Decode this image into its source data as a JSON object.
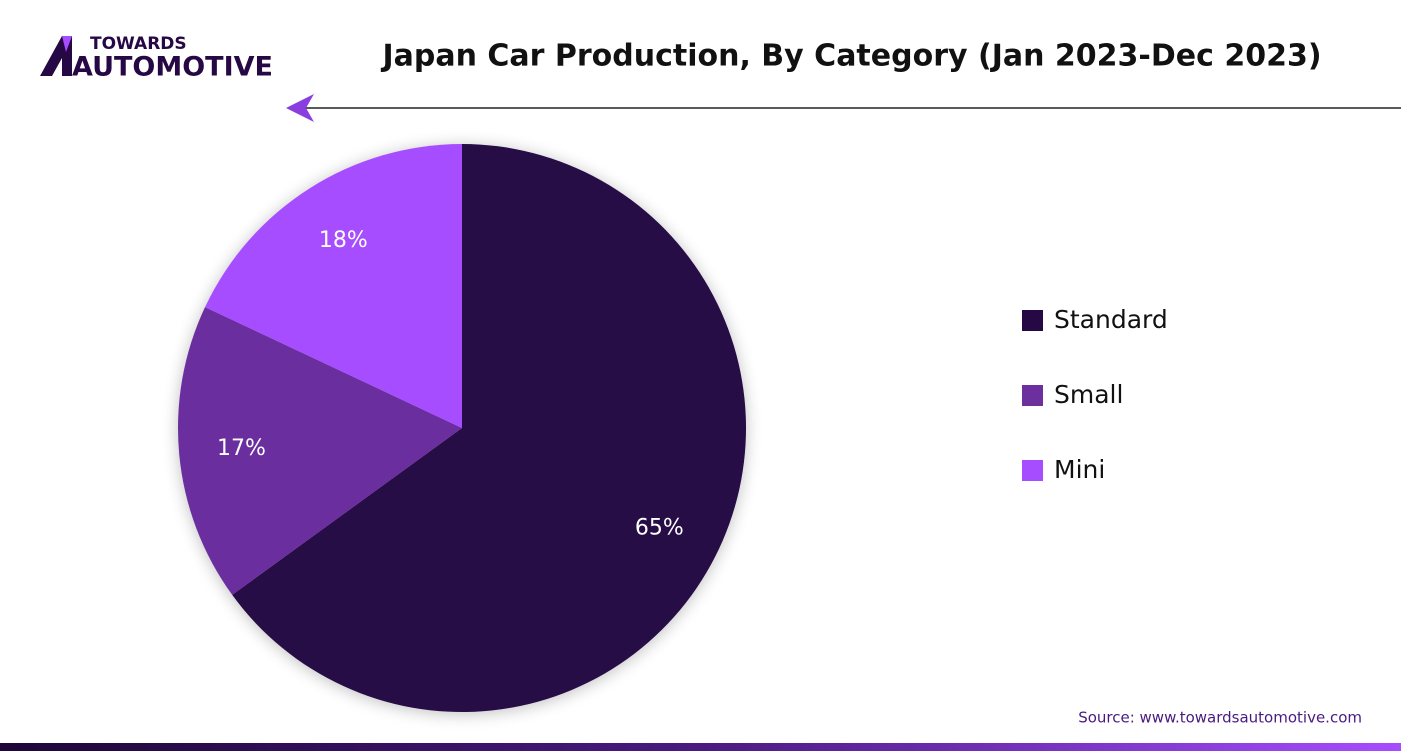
{
  "logo": {
    "line1": "TOWARDS",
    "line2": "AUTOMOTIVE"
  },
  "chart_data": {
    "type": "pie",
    "title": "Japan Car Production, By Category (Jan 2023-Dec 2023)",
    "categories": [
      "Standard",
      "Small",
      "Mini"
    ],
    "values": [
      65,
      17,
      18
    ],
    "value_labels": [
      "65%",
      "17%",
      "18%"
    ],
    "colors": [
      "#260845",
      "#6b2f9e",
      "#a64dff"
    ],
    "legend": "right",
    "source": "Source: www.towardsautomotive.com"
  }
}
